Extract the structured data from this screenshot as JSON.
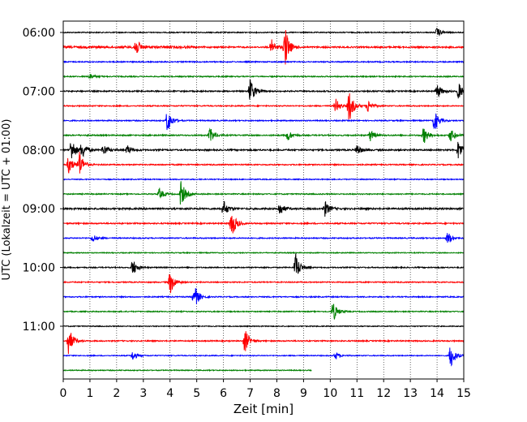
{
  "chart_data": {
    "type": "line",
    "title": "",
    "xlabel": "Zeit  [min]",
    "ylabel": "UTC (Lokalzeit = UTC + 01:00)",
    "xlim": [
      0,
      15
    ],
    "x_ticks": [
      "0",
      "1",
      "2",
      "3",
      "4",
      "5",
      "6",
      "7",
      "8",
      "9",
      "10",
      "11",
      "12",
      "13",
      "14",
      "15"
    ],
    "y_tick_labels": [
      "06:00",
      "07:00",
      "08:00",
      "09:00",
      "10:00",
      "11:00"
    ],
    "grid": "vertical-dotted",
    "trace_colors": [
      "#000000",
      "#ff0000",
      "#0000ff",
      "#008000"
    ],
    "trace_interval_minutes": 15,
    "series": [
      {
        "start": "06:00",
        "color": "#000000",
        "end_min": 15,
        "noise": 0.28,
        "events": [
          {
            "t": 14.0,
            "amp": 0.5
          }
        ]
      },
      {
        "start": "06:15",
        "color": "#ff0000",
        "end_min": 15,
        "noise": 0.4,
        "events": [
          {
            "t": 2.7,
            "amp": 1.0
          },
          {
            "t": 8.3,
            "amp": 2.2
          },
          {
            "t": 7.8,
            "amp": 0.8
          }
        ],
        "noisy_until": 5.0
      },
      {
        "start": "06:30",
        "color": "#0000ff",
        "end_min": 15,
        "noise": 0.3,
        "events": []
      },
      {
        "start": "06:45",
        "color": "#008000",
        "end_min": 15,
        "noise": 0.3,
        "events": [
          {
            "t": 1.0,
            "amp": 0.3
          }
        ]
      },
      {
        "start": "07:00",
        "color": "#000000",
        "end_min": 15,
        "noise": 0.35,
        "events": [
          {
            "t": 7.0,
            "amp": 1.4
          },
          {
            "t": 14.0,
            "amp": 0.8
          },
          {
            "t": 14.8,
            "amp": 0.9
          }
        ]
      },
      {
        "start": "07:15",
        "color": "#ff0000",
        "end_min": 15,
        "noise": 0.3,
        "events": [
          {
            "t": 10.7,
            "amp": 1.8
          },
          {
            "t": 10.2,
            "amp": 0.8
          },
          {
            "t": 11.4,
            "amp": 0.7
          }
        ]
      },
      {
        "start": "07:30",
        "color": "#0000ff",
        "end_min": 15,
        "noise": 0.3,
        "events": [
          {
            "t": 3.9,
            "amp": 1.3
          },
          {
            "t": 13.9,
            "amp": 1.2
          }
        ]
      },
      {
        "start": "07:45",
        "color": "#008000",
        "end_min": 15,
        "noise": 0.35,
        "events": [
          {
            "t": 5.5,
            "amp": 0.8
          },
          {
            "t": 8.4,
            "amp": 0.6
          },
          {
            "t": 11.5,
            "amp": 0.6
          },
          {
            "t": 13.5,
            "amp": 0.9
          },
          {
            "t": 14.5,
            "amp": 0.7
          }
        ]
      },
      {
        "start": "08:00",
        "color": "#000000",
        "end_min": 15,
        "noise": 0.4,
        "events": [
          {
            "t": 0.3,
            "amp": 1.3
          },
          {
            "t": 0.7,
            "amp": 0.9
          },
          {
            "t": 1.5,
            "amp": 0.6
          },
          {
            "t": 2.4,
            "amp": 0.5
          },
          {
            "t": 11.0,
            "amp": 0.6
          },
          {
            "t": 14.8,
            "amp": 1.1
          }
        ]
      },
      {
        "start": "08:15",
        "color": "#ff0000",
        "end_min": 15,
        "noise": 0.32,
        "events": [
          {
            "t": 0.2,
            "amp": 1.0
          },
          {
            "t": 0.6,
            "amp": 1.4
          }
        ]
      },
      {
        "start": "08:30",
        "color": "#0000ff",
        "end_min": 15,
        "noise": 0.25,
        "events": []
      },
      {
        "start": "08:45",
        "color": "#008000",
        "end_min": 15,
        "noise": 0.3,
        "events": [
          {
            "t": 3.6,
            "amp": 0.6
          },
          {
            "t": 4.4,
            "amp": 1.5
          }
        ]
      },
      {
        "start": "09:00",
        "color": "#000000",
        "end_min": 15,
        "noise": 0.45,
        "events": [
          {
            "t": 6.0,
            "amp": 0.9
          },
          {
            "t": 8.1,
            "amp": 0.7
          },
          {
            "t": 9.8,
            "amp": 0.8
          }
        ]
      },
      {
        "start": "09:15",
        "color": "#ff0000",
        "end_min": 15,
        "noise": 0.35,
        "events": [
          {
            "t": 6.3,
            "amp": 1.6
          }
        ]
      },
      {
        "start": "09:30",
        "color": "#0000ff",
        "end_min": 15,
        "noise": 0.3,
        "events": [
          {
            "t": 1.1,
            "amp": 0.4
          },
          {
            "t": 14.4,
            "amp": 0.7
          }
        ]
      },
      {
        "start": "09:45",
        "color": "#008000",
        "end_min": 15,
        "noise": 0.25,
        "events": []
      },
      {
        "start": "10:00",
        "color": "#000000",
        "end_min": 15,
        "noise": 0.3,
        "events": [
          {
            "t": 2.6,
            "amp": 0.9
          },
          {
            "t": 8.7,
            "amp": 1.5
          }
        ]
      },
      {
        "start": "10:15",
        "color": "#ff0000",
        "end_min": 15,
        "noise": 0.3,
        "events": [
          {
            "t": 4.0,
            "amp": 1.3
          }
        ]
      },
      {
        "start": "10:30",
        "color": "#0000ff",
        "end_min": 15,
        "noise": 0.3,
        "events": [
          {
            "t": 4.9,
            "amp": 1.4
          }
        ]
      },
      {
        "start": "10:45",
        "color": "#008000",
        "end_min": 15,
        "noise": 0.28,
        "events": [
          {
            "t": 10.1,
            "amp": 1.1
          }
        ]
      },
      {
        "start": "11:00",
        "color": "#000000",
        "end_min": 15,
        "noise": 0.25,
        "events": []
      },
      {
        "start": "11:15",
        "color": "#ff0000",
        "end_min": 15,
        "noise": 0.32,
        "events": [
          {
            "t": 0.2,
            "amp": 1.5
          },
          {
            "t": 6.8,
            "amp": 1.3
          }
        ]
      },
      {
        "start": "11:30",
        "color": "#0000ff",
        "end_min": 15,
        "noise": 0.25,
        "events": [
          {
            "t": 2.6,
            "amp": 0.5
          },
          {
            "t": 10.2,
            "amp": 0.4
          },
          {
            "t": 14.5,
            "amp": 1.4
          }
        ]
      },
      {
        "start": "11:45",
        "color": "#008000",
        "end_min": 9.3,
        "noise": 0.25,
        "events": []
      }
    ]
  }
}
